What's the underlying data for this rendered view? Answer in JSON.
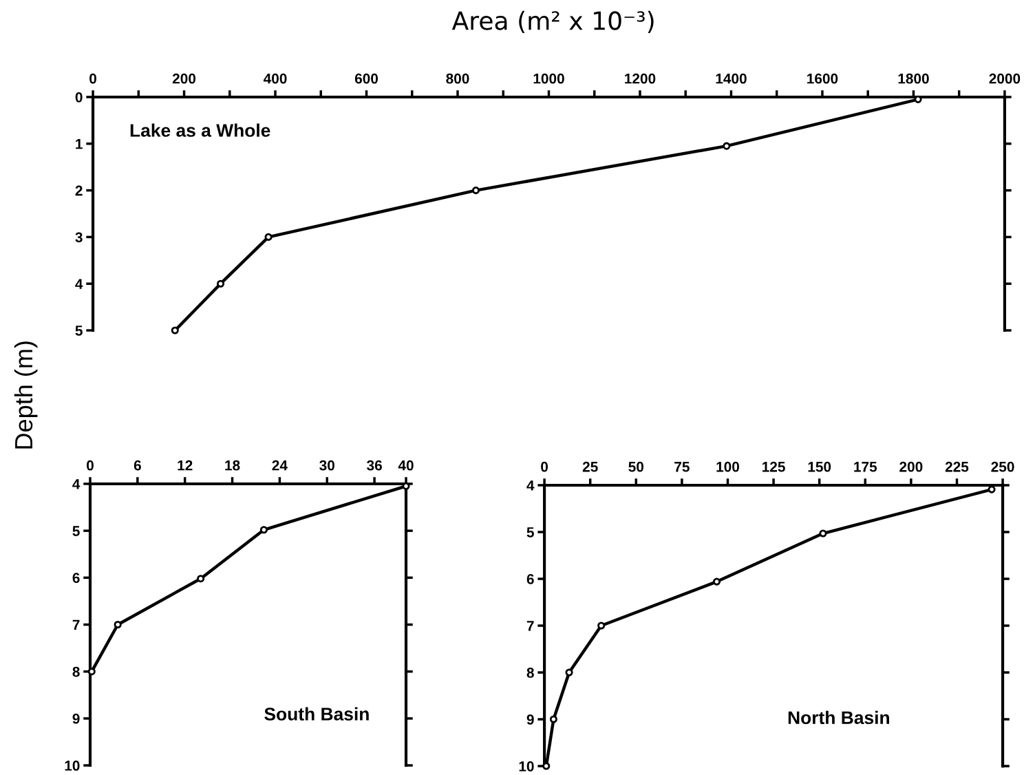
{
  "chart_data": [
    {
      "type": "line",
      "title": "Area (m² x 10⁻³)",
      "ylabel": "Depth (m)",
      "annotations": [
        "Lake as a Whole"
      ],
      "series": [
        {
          "color": "#000000",
          "values": [
            0.05,
            1.05,
            2,
            3,
            4,
            5
          ],
          "x": [
            1810,
            1390,
            840,
            385,
            280,
            180
          ]
        }
      ],
      "xlim": [
        0,
        2000
      ],
      "xticks": [
        0,
        {
          "value": 100,
          "label": null
        },
        200,
        {
          "value": 300,
          "label": null
        },
        400,
        {
          "value": 500,
          "label": null
        },
        600,
        {
          "value": 700,
          "label": null
        },
        800,
        {
          "value": 900,
          "label": null
        },
        1000,
        {
          "value": 1100,
          "label": null
        },
        1200,
        {
          "value": 1300,
          "label": null
        },
        1400,
        {
          "value": 1500,
          "label": null
        },
        1600,
        {
          "value": 1700,
          "label": null
        },
        1800,
        {
          "value": 1900,
          "label": null
        },
        2000
      ],
      "ylim": [
        5,
        0
      ],
      "yticks": [
        0,
        1,
        2,
        3,
        4,
        5
      ],
      "marker": "circle",
      "line_style": "solid",
      "grid": false
    },
    {
      "type": "line",
      "annotations": [
        "South Basin"
      ],
      "series": [
        {
          "color": "#000000",
          "values": [
            4.05,
            4.98,
            6.02,
            7,
            8
          ],
          "x": [
            40,
            22,
            14,
            3.5,
            0.2
          ]
        }
      ],
      "xlim": [
        0,
        40
      ],
      "xticks": [
        0,
        6,
        12,
        18,
        24,
        30,
        36,
        40
      ],
      "ylim": [
        10,
        4
      ],
      "yticks": [
        4,
        5,
        6,
        7,
        8,
        9,
        10
      ],
      "marker": "circle",
      "line_style": "solid",
      "grid": false
    },
    {
      "type": "line",
      "annotations": [
        "North Basin"
      ],
      "series": [
        {
          "color": "#000000",
          "values": [
            4.09,
            5.03,
            6.06,
            7,
            8,
            9,
            10
          ],
          "x": [
            244,
            152,
            94,
            31,
            13.5,
            5,
            1
          ]
        }
      ],
      "xlim": [
        0,
        250
      ],
      "xticks": [
        0,
        25,
        50,
        75,
        100,
        125,
        150,
        175,
        200,
        225,
        250
      ],
      "ylim": [
        10,
        4
      ],
      "yticks": [
        4,
        5,
        6,
        7,
        8,
        9,
        10
      ],
      "marker": "circle",
      "line_style": "solid",
      "grid": false
    }
  ]
}
